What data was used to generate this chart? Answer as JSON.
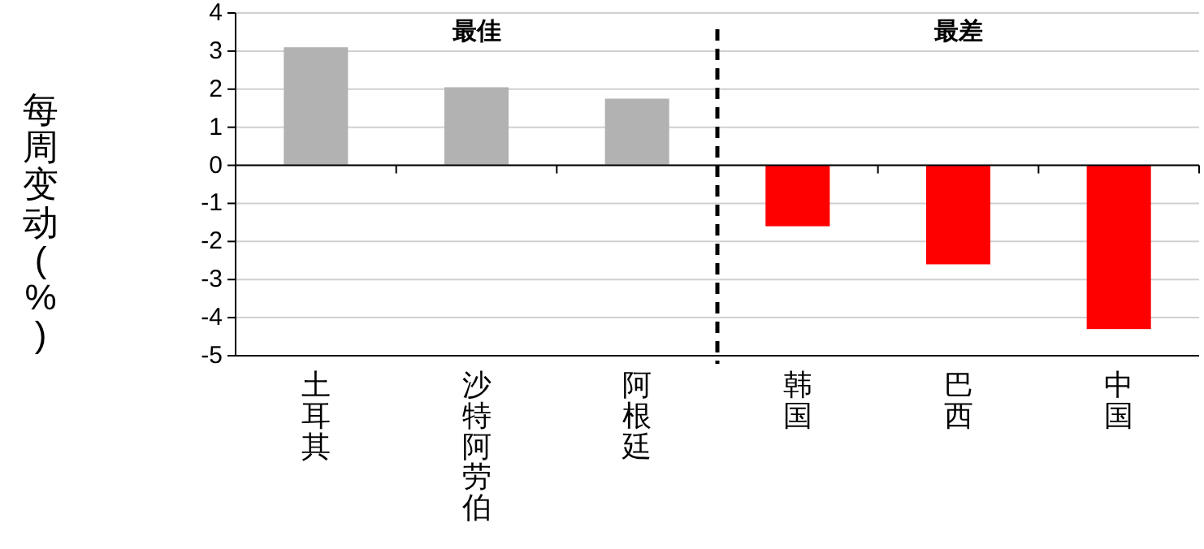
{
  "chart_data": {
    "type": "bar",
    "ylabel": "每周变动(%)",
    "categories": [
      "土耳其",
      "沙特阿劳伯",
      "阿根廷",
      "韩国",
      "巴西",
      "中国"
    ],
    "values": [
      3.1,
      2.05,
      1.75,
      -1.6,
      -2.6,
      -4.3
    ],
    "colors": [
      "#b2b2b2",
      "#b2b2b2",
      "#b2b2b2",
      "#ff0000",
      "#ff0000",
      "#ff0000"
    ],
    "ylim": [
      -5,
      4
    ],
    "yticks": [
      -5,
      -4,
      -3,
      -2,
      -1,
      0,
      1,
      2,
      3,
      4
    ],
    "grid": "y",
    "annotations": [
      "最佳",
      "最差"
    ]
  }
}
